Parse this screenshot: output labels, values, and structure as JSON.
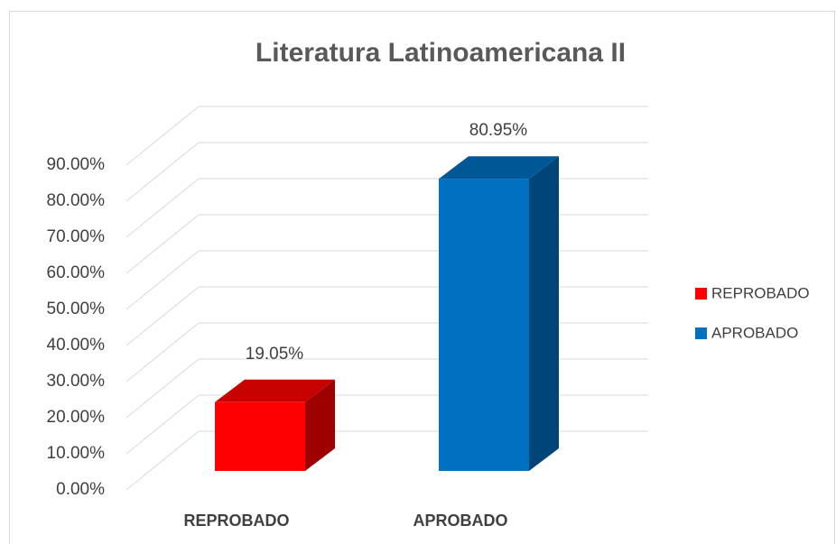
{
  "chart_data": {
    "type": "bar3d",
    "title": "Literatura Latinoamericana II",
    "categories": [
      "REPROBADO",
      "APROBADO"
    ],
    "values": [
      19.05,
      80.95
    ],
    "value_labels": [
      "19.05%",
      "80.95%"
    ],
    "colors": [
      "#ff0000",
      "#0070c0"
    ],
    "ylim": [
      0,
      90
    ],
    "yticks": [
      {
        "value": 0,
        "label": "0.00%"
      },
      {
        "value": 10,
        "label": "10.00%"
      },
      {
        "value": 20,
        "label": "20.00%"
      },
      {
        "value": 30,
        "label": "30.00%"
      },
      {
        "value": 40,
        "label": "40.00%"
      },
      {
        "value": 50,
        "label": "50.00%"
      },
      {
        "value": 60,
        "label": "60.00%"
      },
      {
        "value": 70,
        "label": "70.00%"
      },
      {
        "value": 80,
        "label": "80.00%"
      },
      {
        "value": 90,
        "label": "90.00%"
      }
    ],
    "grid": true,
    "legend": "right"
  }
}
